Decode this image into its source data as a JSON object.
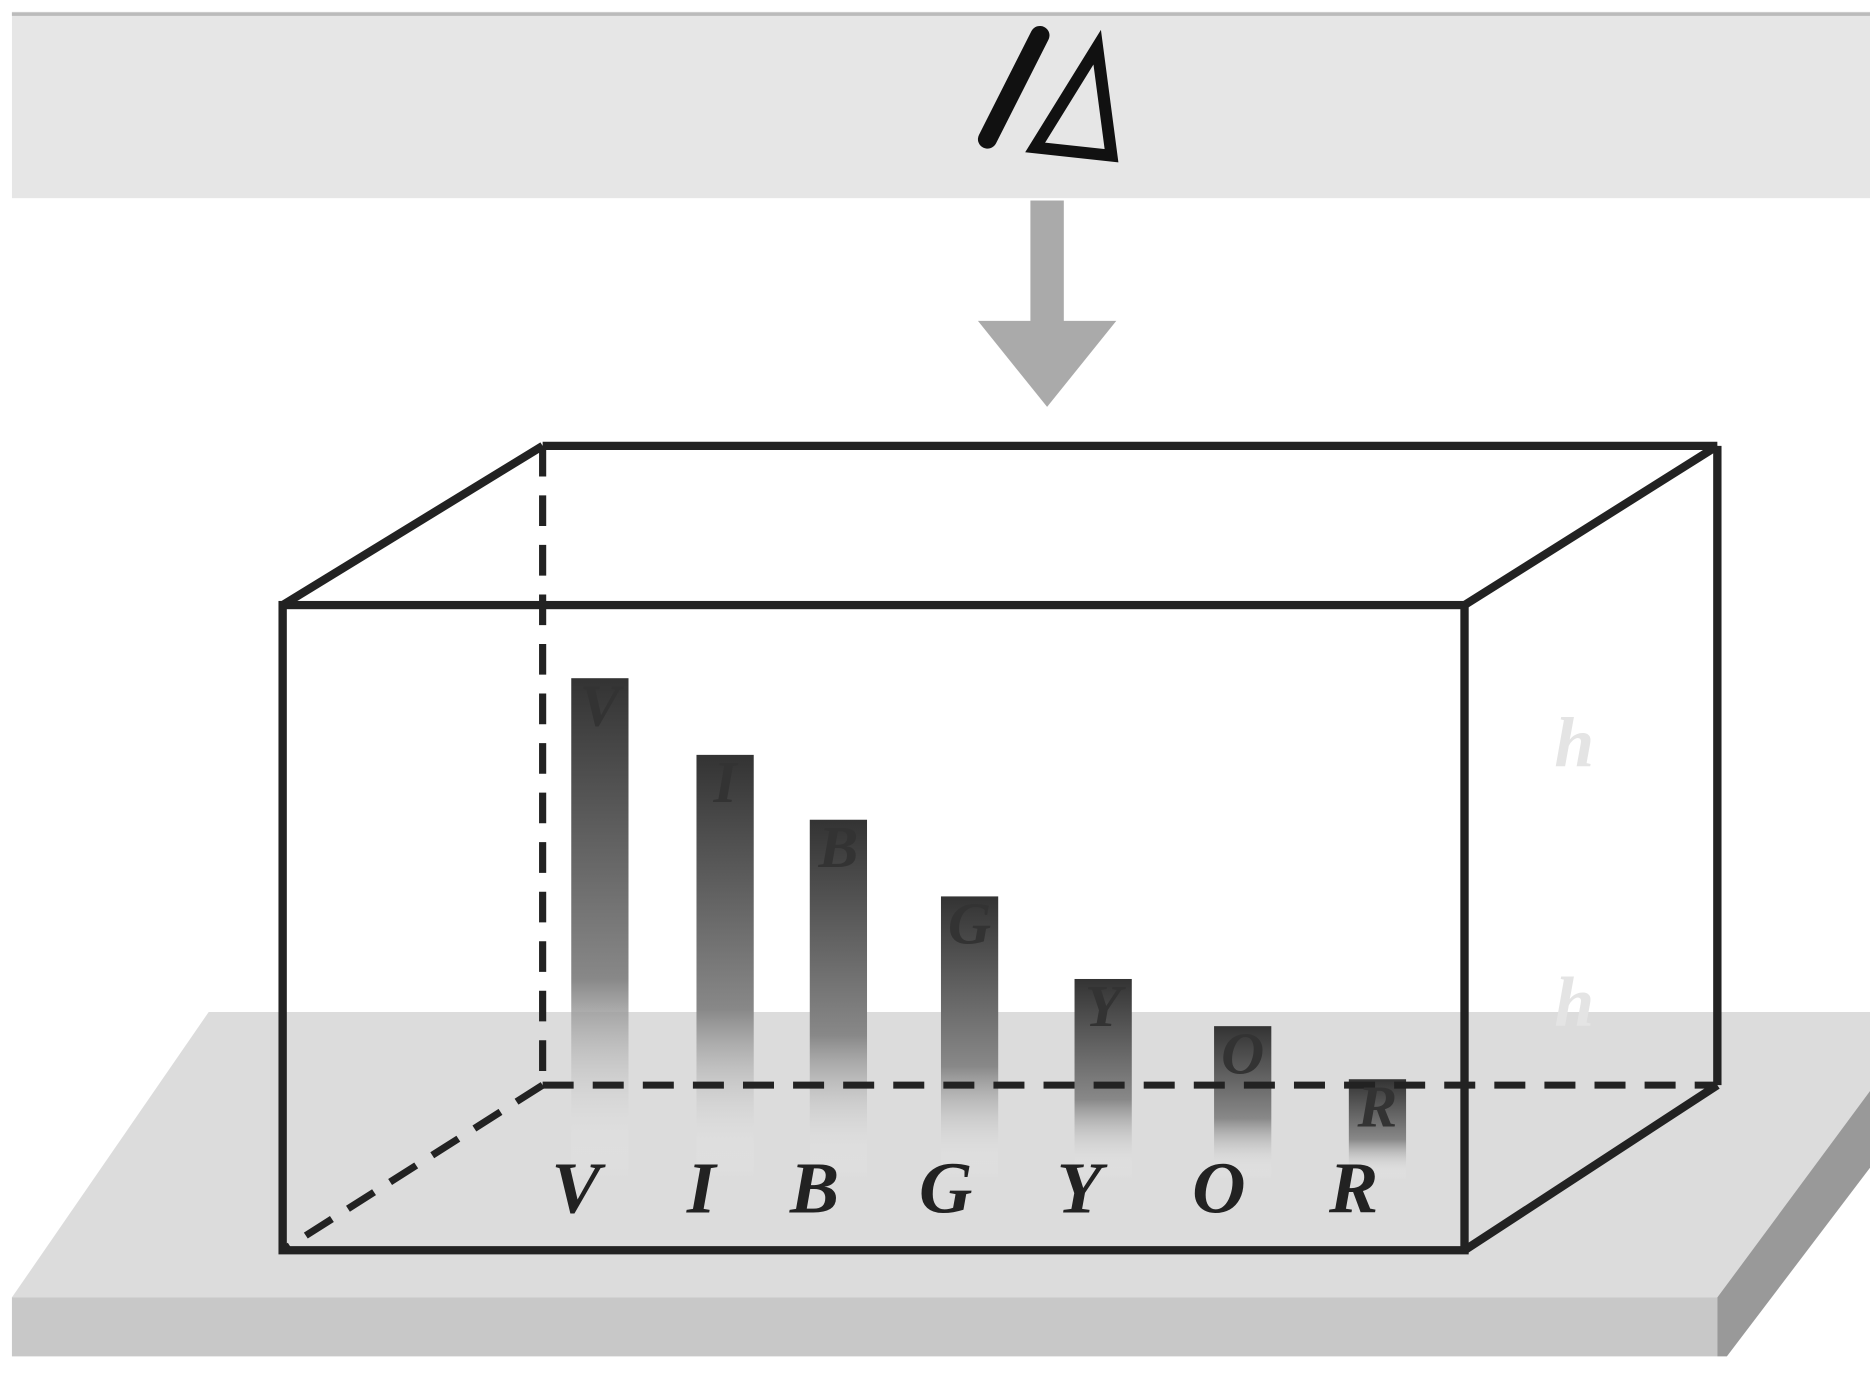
{
  "letters": [
    "V",
    "I",
    "B",
    "G",
    "Y",
    "O",
    "R"
  ],
  "apparent_letters": [
    "V",
    "I",
    "B",
    "G",
    "Y",
    "O",
    "R"
  ],
  "depth_labels": [
    "h",
    "h"
  ]
}
